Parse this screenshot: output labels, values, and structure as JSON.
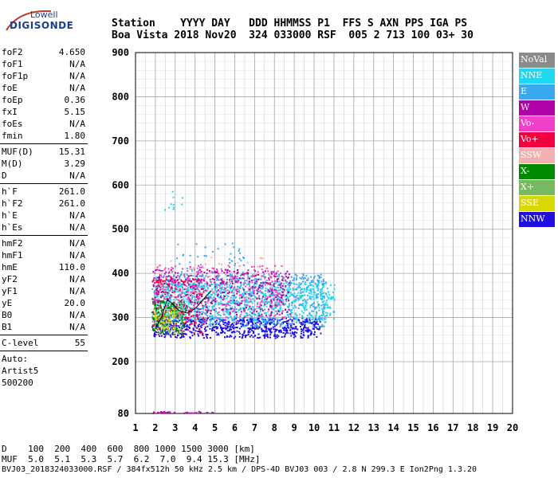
{
  "logo": {
    "line1": "Lowell",
    "line2": "DIGISONDE"
  },
  "header": {
    "row1": "Station    YYYY DAY   DDD HHMMSS P1  FFS S AXN PPS IGA PS",
    "row2": "Boa Vista 2018 Nov20  324 033000 RSF  005 2 713 100 03+ 30"
  },
  "params": [
    {
      "type": "row",
      "label": "foF2",
      "value": "4.650"
    },
    {
      "type": "row",
      "label": "foF1",
      "value": "N/A"
    },
    {
      "type": "row",
      "label": "foF1p",
      "value": "N/A"
    },
    {
      "type": "row",
      "label": "foE",
      "value": "N/A"
    },
    {
      "type": "row",
      "label": "foEp",
      "value": "0.36"
    },
    {
      "type": "row",
      "label": "fxI",
      "value": "5.15"
    },
    {
      "type": "row",
      "label": "foEs",
      "value": "N/A"
    },
    {
      "type": "row",
      "label": "fmin",
      "value": "1.80"
    },
    {
      "type": "sep"
    },
    {
      "type": "row",
      "label": "MUF(D)",
      "value": "15.31"
    },
    {
      "type": "row",
      "label": "M(D)",
      "value": "3.29"
    },
    {
      "type": "row",
      "label": "D",
      "value": "N/A"
    },
    {
      "type": "sep"
    },
    {
      "type": "row",
      "label": "h`F",
      "value": "261.0"
    },
    {
      "type": "row",
      "label": "h`F2",
      "value": "261.0"
    },
    {
      "type": "row",
      "label": "h`E",
      "value": "N/A"
    },
    {
      "type": "row",
      "label": "h`Es",
      "value": "N/A"
    },
    {
      "type": "sep"
    },
    {
      "type": "row",
      "label": "hmF2",
      "value": "N/A"
    },
    {
      "type": "row",
      "label": "hmF1",
      "value": "N/A"
    },
    {
      "type": "row",
      "label": "hmE",
      "value": "110.0"
    },
    {
      "type": "row",
      "label": "yF2",
      "value": "N/A"
    },
    {
      "type": "row",
      "label": "yF1",
      "value": "N/A"
    },
    {
      "type": "row",
      "label": "yE",
      "value": "20.0"
    },
    {
      "type": "row",
      "label": "B0",
      "value": "N/A"
    },
    {
      "type": "row",
      "label": "B1",
      "value": "N/A"
    },
    {
      "type": "sep"
    },
    {
      "type": "row",
      "label": "C-level",
      "value": "55"
    },
    {
      "type": "sep"
    },
    {
      "type": "text",
      "value": "Auto:"
    },
    {
      "type": "text",
      "value": "Artist5"
    },
    {
      "type": "text",
      "value": "500200"
    }
  ],
  "legend": [
    {
      "label": "NoVal",
      "color": "#8a8a8a"
    },
    {
      "label": "NNE",
      "color": "#20d8f0"
    },
    {
      "label": "E",
      "color": "#3aa8ee"
    },
    {
      "label": "W",
      "color": "#b000a8"
    },
    {
      "label": "Vo-",
      "color": "#f040c8"
    },
    {
      "label": "Vo+",
      "color": "#f00040"
    },
    {
      "label": "SSW",
      "color": "#f4b0b0"
    },
    {
      "label": "X-",
      "color": "#008a00"
    },
    {
      "label": "X+",
      "color": "#78b860"
    },
    {
      "label": "SSE",
      "color": "#d8d800"
    },
    {
      "label": "NNW",
      "color": "#2010e0"
    }
  ],
  "bottom": {
    "d_row": "D    100  200  400  600  800 1000 1500 3000 [km]",
    "muf_row": "MUF  5.0  5.1  5.3  5.7  6.2  7.0  9.4 15.3 [MHz]"
  },
  "footer": "BVJ03_2018324033000.RSF / 384fx512h 50 kHz 2.5 km / DPS-4D BVJ03 003 / 2.8 N 299.3 E Ion2Png 1.3.20",
  "chart_data": {
    "type": "scatter",
    "x_ticks": [
      "1",
      "2",
      "3",
      "4",
      "5",
      "6",
      "7",
      "8",
      "9",
      "10",
      "11",
      "12",
      "13",
      "14",
      "15",
      "16",
      "17",
      "18",
      "19",
      "20"
    ],
    "y_ticks": [
      "80",
      "200",
      "300",
      "400",
      "500",
      "600",
      "700",
      "800",
      "900"
    ],
    "xlim": [
      1,
      20
    ],
    "ylim": [
      80,
      900
    ],
    "grid": true,
    "legend_position": "right",
    "clusters": [
      {
        "color": "#2010e0",
        "x": [
          1.8,
          10.3
        ],
        "y": [
          255,
          300
        ],
        "n": 700
      },
      {
        "color": "#3aa8ee",
        "x": [
          1.8,
          10.6
        ],
        "y": [
          280,
          400
        ],
        "n": 900
      },
      {
        "color": "#20d8f0",
        "x": [
          1.9,
          11.0
        ],
        "y": [
          290,
          380
        ],
        "n": 700
      },
      {
        "color": "#b000a8",
        "x": [
          1.8,
          8.8
        ],
        "y": [
          300,
          410
        ],
        "n": 420
      },
      {
        "color": "#f040c8",
        "x": [
          1.9,
          8.5
        ],
        "y": [
          290,
          420
        ],
        "n": 260
      },
      {
        "color": "#f00040",
        "x": [
          1.8,
          4.5
        ],
        "y": [
          260,
          390
        ],
        "n": 180
      },
      {
        "color": "#008a00",
        "x": [
          1.8,
          3.5
        ],
        "y": [
          260,
          340
        ],
        "n": 140
      },
      {
        "color": "#78b860",
        "x": [
          1.9,
          3.4
        ],
        "y": [
          265,
          330
        ],
        "n": 90
      },
      {
        "color": "#f4b0b0",
        "x": [
          2.0,
          8.5
        ],
        "y": [
          310,
          440
        ],
        "n": 90
      },
      {
        "color": "#d8d800",
        "x": [
          1.9,
          3.0
        ],
        "y": [
          275,
          320
        ],
        "n": 40
      },
      {
        "color": "#3aa8ee",
        "x": [
          2.8,
          6.5
        ],
        "y": [
          400,
          470
        ],
        "n": 40
      },
      {
        "color": "#20d8f0",
        "x": [
          2.3,
          3.4
        ],
        "y": [
          530,
          600
        ],
        "n": 10
      }
    ],
    "trace": {
      "color": "#000000",
      "x": [
        2.0,
        2.3,
        2.6,
        2.9,
        3.2,
        3.6,
        4.0,
        4.4,
        4.8
      ],
      "y": [
        275,
        300,
        340,
        330,
        315,
        310,
        320,
        340,
        360
      ]
    },
    "bottom_points": {
      "color": "#b000a8",
      "x": [
        1.8,
        4.9
      ],
      "y": [
        82,
        86
      ],
      "n": 30
    }
  }
}
